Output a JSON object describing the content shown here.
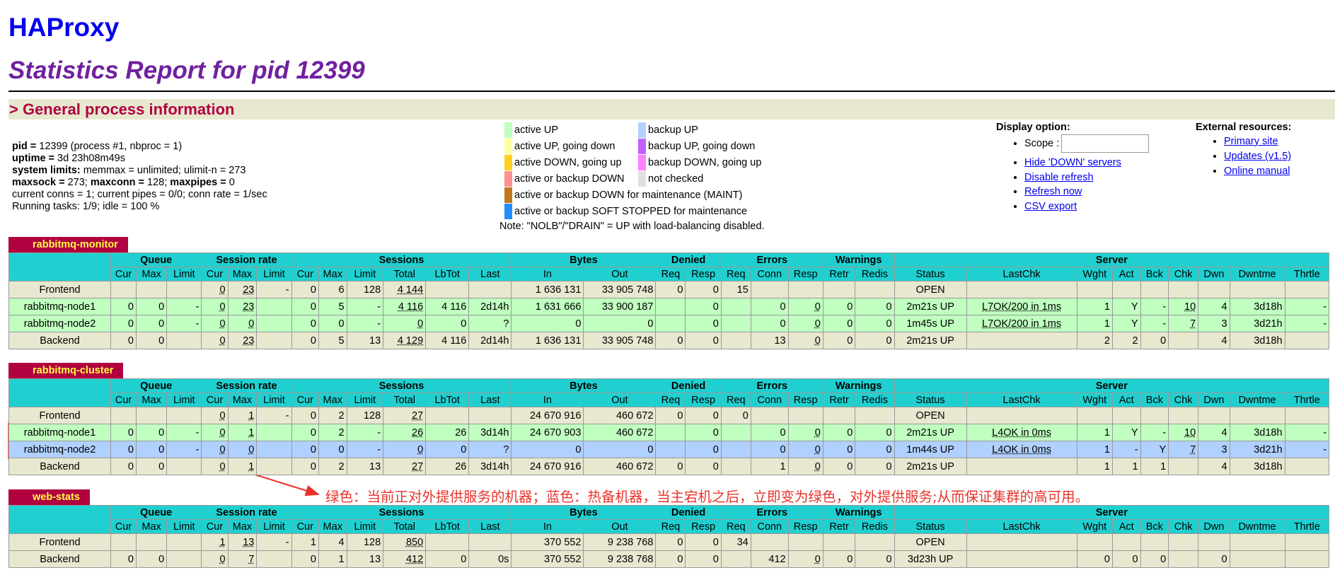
{
  "header": {
    "title": "HAProxy",
    "subtitle": "Statistics Report for pid 12399",
    "section": "> General process information"
  },
  "process_info": [
    [
      {
        "text": "pid =",
        "bold": true
      },
      {
        "text": " 12399 (process #1, nbproc = 1)"
      }
    ],
    [
      {
        "text": "uptime =",
        "bold": true
      },
      {
        "text": " 3d 23h08m49s"
      }
    ],
    [
      {
        "text": "system limits:",
        "bold": true
      },
      {
        "text": " memmax = unlimited; ulimit-n = 273"
      }
    ],
    [
      {
        "text": "maxsock =",
        "bold": true
      },
      {
        "text": " 273; "
      },
      {
        "text": "maxconn =",
        "bold": true
      },
      {
        "text": " 128; "
      },
      {
        "text": "maxpipes =",
        "bold": true
      },
      {
        "text": " 0"
      }
    ],
    [
      {
        "text": "current conns = 1; current pipes = 0/0; conn rate = 1/sec"
      }
    ],
    [
      {
        "text": "Running tasks: 1/9; idle = 100 %"
      }
    ]
  ],
  "legend": {
    "columns": [
      [
        {
          "label": "active UP",
          "color": "#c0ffc0"
        },
        {
          "label": "active UP, going down",
          "color": "#ffffa0"
        },
        {
          "label": "active DOWN, going up",
          "color": "#ffd020"
        },
        {
          "label": "active or backup DOWN",
          "color": "#ff9090"
        },
        {
          "label": "active or backup DOWN for maintenance (MAINT)",
          "color": "#c07820"
        },
        {
          "label": "active or backup SOFT STOPPED for maintenance",
          "color": "#2090ff"
        }
      ],
      [
        {
          "label": "backup UP",
          "color": "#b0d0ff"
        },
        {
          "label": "backup UP, going down",
          "color": "#c060ff"
        },
        {
          "label": "backup DOWN, going up",
          "color": "#ff80ff"
        },
        {
          "label": "not checked",
          "color": "#e0e0e0"
        }
      ]
    ],
    "note": "Note: \"NOLB\"/\"DRAIN\" = UP with load-balancing disabled."
  },
  "display_options": {
    "title": "Display option:",
    "scope_label": "Scope :",
    "links": [
      "Hide 'DOWN' servers",
      "Disable refresh",
      "Refresh now",
      "CSV export"
    ]
  },
  "external_resources": {
    "title": "External resources:",
    "links": [
      "Primary site",
      "Updates (v1.5)",
      "Online manual"
    ]
  },
  "stats_header": {
    "groups": [
      {
        "label": "Queue",
        "columns": [
          "Cur",
          "Max",
          "Limit"
        ]
      },
      {
        "label": "Session rate",
        "columns": [
          "Cur",
          "Max",
          "Limit"
        ]
      },
      {
        "label": "Sessions",
        "columns": [
          "Cur",
          "Max",
          "Limit",
          "Total",
          "LbTot",
          "Last"
        ]
      },
      {
        "label": "Bytes",
        "columns": [
          "In",
          "Out"
        ]
      },
      {
        "label": "Denied",
        "columns": [
          "Req",
          "Resp"
        ]
      },
      {
        "label": "Errors",
        "columns": [
          "Req",
          "Conn",
          "Resp"
        ]
      },
      {
        "label": "Warnings",
        "columns": [
          "Retr",
          "Redis"
        ]
      },
      {
        "label": "Server",
        "columns": [
          "Status",
          "LastChk",
          "Wght",
          "Act",
          "Bck",
          "Chk",
          "Dwn",
          "Dwntme",
          "Thrtle"
        ]
      }
    ],
    "color": "#20d0d0"
  },
  "proxies": [
    {
      "name": "rabbitmq-monitor",
      "rows": [
        {
          "name": "Frontend",
          "color": "#e8e8d0",
          "cells": [
            null,
            null,
            null,
            "0",
            "23",
            "-",
            "0",
            "6",
            "128",
            "4 144",
            null,
            null,
            "1 636 131",
            "33 905 748",
            "0",
            "0",
            "15",
            null,
            null,
            null,
            null,
            "OPEN",
            null,
            null,
            null,
            null,
            null,
            null,
            null,
            null
          ]
        },
        {
          "name": "rabbitmq-node1",
          "color": "#c0ffc0",
          "cells": [
            "0",
            "0",
            "-",
            "0",
            "23",
            null,
            "0",
            "5",
            "-",
            "4 116",
            "4 116",
            "2d14h",
            "1 631 666",
            "33 900 187",
            null,
            "0",
            null,
            "0",
            "0",
            "0",
            "0",
            "2m21s UP",
            "L7OK/200 in 1ms",
            "1",
            "Y",
            "-",
            "10",
            "4",
            "3d18h",
            "-"
          ]
        },
        {
          "name": "rabbitmq-node2",
          "color": "#c0ffc0",
          "cells": [
            "0",
            "0",
            "-",
            "0",
            "0",
            null,
            "0",
            "0",
            "-",
            "0",
            "0",
            "?",
            "0",
            "0",
            null,
            "0",
            null,
            "0",
            "0",
            "0",
            "0",
            "1m45s UP",
            "L7OK/200 in 1ms",
            "1",
            "Y",
            "-",
            "7",
            "3",
            "3d21h",
            "-"
          ]
        },
        {
          "name": "Backend",
          "color": "#e8e8d0",
          "cells": [
            "0",
            "0",
            null,
            "0",
            "23",
            null,
            "0",
            "5",
            "13",
            "4 129",
            "4 116",
            "2d14h",
            "1 636 131",
            "33 905 748",
            "0",
            "0",
            null,
            "13",
            "0",
            "0",
            "0",
            "2m21s UP",
            null,
            "2",
            "2",
            "0",
            null,
            "4",
            "3d18h",
            null
          ]
        }
      ]
    },
    {
      "name": "rabbitmq-cluster",
      "rows": [
        {
          "name": "Frontend",
          "color": "#e8e8d0",
          "cells": [
            null,
            null,
            null,
            "0",
            "1",
            "-",
            "0",
            "2",
            "128",
            "27",
            null,
            null,
            "24 670 916",
            "460 672",
            "0",
            "0",
            "0",
            null,
            null,
            null,
            null,
            "OPEN",
            null,
            null,
            null,
            null,
            null,
            null,
            null,
            null
          ]
        },
        {
          "name": "rabbitmq-node1",
          "color": "#c0ffc0",
          "cells": [
            "0",
            "0",
            "-",
            "0",
            "1",
            null,
            "0",
            "2",
            "-",
            "26",
            "26",
            "3d14h",
            "24 670 903",
            "460 672",
            null,
            "0",
            null,
            "0",
            "0",
            "0",
            "0",
            "2m21s UP",
            "L4OK in 0ms",
            "1",
            "Y",
            "-",
            "10",
            "4",
            "3d18h",
            "-"
          ]
        },
        {
          "name": "rabbitmq-node2",
          "color": "#b0d0ff",
          "cells": [
            "0",
            "0",
            "-",
            "0",
            "0",
            null,
            "0",
            "0",
            "-",
            "0",
            "0",
            "?",
            "0",
            "0",
            null,
            "0",
            null,
            "0",
            "0",
            "0",
            "0",
            "1m44s UP",
            "L4OK in 0ms",
            "1",
            "-",
            "Y",
            "7",
            "3",
            "3d21h",
            "-"
          ]
        },
        {
          "name": "Backend",
          "color": "#e8e8d0",
          "cells": [
            "0",
            "0",
            null,
            "0",
            "1",
            null,
            "0",
            "2",
            "13",
            "27",
            "26",
            "3d14h",
            "24 670 916",
            "460 672",
            "0",
            "0",
            null,
            "1",
            "0",
            "0",
            "0",
            "2m21s UP",
            null,
            "1",
            "1",
            "1",
            null,
            "4",
            "3d18h",
            null
          ]
        }
      ]
    },
    {
      "name": "web-stats",
      "rows": [
        {
          "name": "Frontend",
          "color": "#e8e8d0",
          "cells": [
            null,
            null,
            null,
            "1",
            "13",
            "-",
            "1",
            "4",
            "128",
            "850",
            null,
            null,
            "370 552",
            "9 238 768",
            "0",
            "0",
            "34",
            null,
            null,
            null,
            null,
            "OPEN",
            null,
            null,
            null,
            null,
            null,
            null,
            null,
            null
          ]
        },
        {
          "name": "Backend",
          "color": "#e8e8d0",
          "cells": [
            "0",
            "0",
            null,
            "0",
            "7",
            null,
            "0",
            "1",
            "13",
            "412",
            "0",
            "0s",
            "370 552",
            "9 238 768",
            "0",
            "0",
            null,
            "412",
            "0",
            "0",
            "0",
            "3d23h UP",
            null,
            "0",
            "0",
            "0",
            null,
            "0",
            null,
            null
          ]
        }
      ]
    }
  ],
  "annotation": {
    "text": "绿色：当前正对外提供服务的机器；蓝色：热备机器，当主宕机之后，立即变为绿色，对外提供服务;从而保证集群的高可用。",
    "color": "#e8322a"
  }
}
